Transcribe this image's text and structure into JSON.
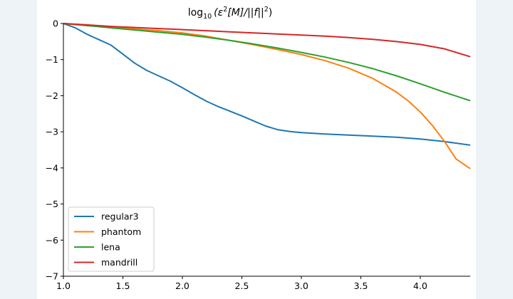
{
  "chart_data": {
    "type": "line",
    "title": "log10(ε²[M]/||f||²)",
    "title_parts": {
      "log": "log",
      "base": "10",
      "open": "(ε",
      "sq1": "2",
      "mid": "[M]/||f||",
      "sq2": "2",
      "close": ")"
    },
    "xlabel": "",
    "ylabel": "",
    "xlim": [
      1.0,
      4.42
    ],
    "ylim": [
      -7,
      0
    ],
    "x_ticks": [
      1.0,
      1.5,
      2.0,
      2.5,
      3.0,
      3.5,
      4.0
    ],
    "x_tick_labels": [
      "1.0",
      "1.5",
      "2.0",
      "2.5",
      "3.0",
      "3.5",
      "4.0"
    ],
    "y_ticks": [
      0,
      -1,
      -2,
      -3,
      -4,
      -5,
      -6,
      -7
    ],
    "y_tick_labels": [
      "0",
      "−1",
      "−2",
      "−3",
      "−4",
      "−5",
      "−6",
      "−7"
    ],
    "grid": false,
    "legend_position": "lower-left",
    "series": [
      {
        "name": "regular3",
        "color": "#1f77b4",
        "x": [
          1.0,
          1.1,
          1.2,
          1.3,
          1.4,
          1.5,
          1.6,
          1.7,
          1.8,
          1.9,
          2.0,
          2.1,
          2.2,
          2.3,
          2.4,
          2.5,
          2.6,
          2.7,
          2.8,
          2.9,
          3.0,
          3.2,
          3.4,
          3.6,
          3.8,
          4.0,
          4.2,
          4.42
        ],
        "y": [
          0,
          -0.12,
          -0.3,
          -0.45,
          -0.6,
          -0.85,
          -1.1,
          -1.3,
          -1.45,
          -1.6,
          -1.78,
          -1.97,
          -2.15,
          -2.3,
          -2.43,
          -2.56,
          -2.7,
          -2.84,
          -2.94,
          -2.99,
          -3.02,
          -3.06,
          -3.09,
          -3.12,
          -3.15,
          -3.2,
          -3.27,
          -3.37
        ]
      },
      {
        "name": "phantom",
        "color": "#ff7f0e",
        "x": [
          1.0,
          1.2,
          1.4,
          1.6,
          1.8,
          2.0,
          2.2,
          2.4,
          2.6,
          2.8,
          3.0,
          3.2,
          3.4,
          3.6,
          3.8,
          3.9,
          4.0,
          4.1,
          4.2,
          4.3,
          4.42
        ],
        "y": [
          0,
          -0.04,
          -0.1,
          -0.15,
          -0.2,
          -0.26,
          -0.35,
          -0.47,
          -0.59,
          -0.72,
          -0.86,
          -1.03,
          -1.24,
          -1.52,
          -1.9,
          -2.15,
          -2.45,
          -2.82,
          -3.25,
          -3.75,
          -4.02
        ]
      },
      {
        "name": "lena",
        "color": "#2ca02c",
        "x": [
          1.0,
          1.2,
          1.4,
          1.6,
          1.8,
          2.0,
          2.2,
          2.4,
          2.6,
          2.8,
          3.0,
          3.2,
          3.4,
          3.6,
          3.8,
          4.0,
          4.2,
          4.42
        ],
        "y": [
          0,
          -0.06,
          -0.12,
          -0.18,
          -0.24,
          -0.3,
          -0.38,
          -0.47,
          -0.57,
          -0.68,
          -0.8,
          -0.93,
          -1.08,
          -1.25,
          -1.45,
          -1.67,
          -1.9,
          -2.14
        ]
      },
      {
        "name": "mandrill",
        "color": "#d62728",
        "x": [
          1.0,
          1.2,
          1.4,
          1.6,
          1.8,
          2.0,
          2.2,
          2.4,
          2.6,
          2.8,
          3.0,
          3.2,
          3.4,
          3.6,
          3.8,
          4.0,
          4.2,
          4.42
        ],
        "y": [
          0,
          -0.04,
          -0.08,
          -0.11,
          -0.14,
          -0.17,
          -0.2,
          -0.23,
          -0.26,
          -0.29,
          -0.32,
          -0.35,
          -0.39,
          -0.44,
          -0.5,
          -0.58,
          -0.7,
          -0.92
        ]
      }
    ]
  }
}
